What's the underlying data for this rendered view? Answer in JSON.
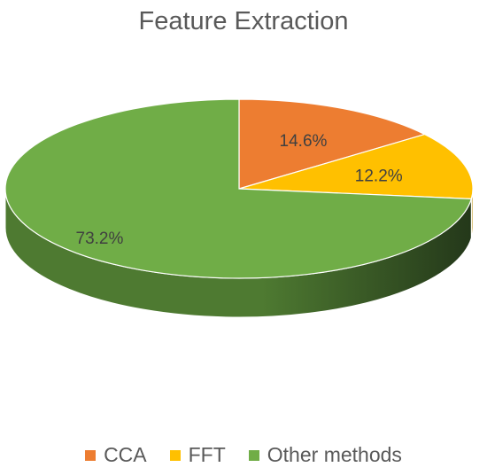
{
  "chart_data": {
    "type": "pie",
    "title": "Feature Extraction",
    "slices": [
      {
        "label": "CCA",
        "value": 14.6,
        "display": "14.6%",
        "color": "#ED7D31",
        "side_color": "#A5551F"
      },
      {
        "label": "FFT",
        "value": 12.2,
        "display": "12.2%",
        "color": "#FFC000",
        "side_color": "#B88A00"
      },
      {
        "label": "Other methods",
        "value": 73.2,
        "display": "73.2%",
        "color": "#70AD47",
        "side_color": "#4E7A31"
      }
    ],
    "style": "3d",
    "legend": "bottom",
    "start_angle": "12 o'clock",
    "direction": "clockwise"
  }
}
